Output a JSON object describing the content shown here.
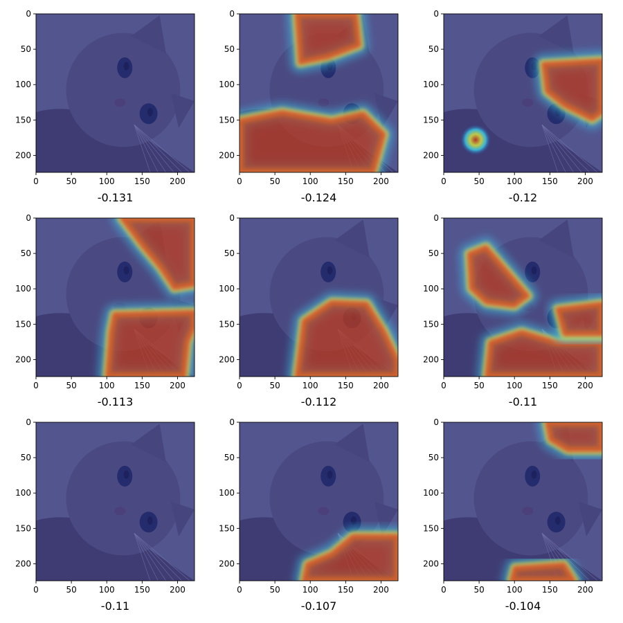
{
  "figure": {
    "description_free": true
  },
  "axis": {
    "x_ticks": [
      "0",
      "50",
      "100",
      "150",
      "200"
    ],
    "y_ticks": [
      "0",
      "50",
      "100",
      "150",
      "200"
    ],
    "xlim": [
      0,
      224
    ],
    "ylim": [
      224,
      0
    ]
  },
  "colors": {
    "cold": "#2a2f86",
    "hot": "#c03a1e",
    "colormap": "jet",
    "fur": "#7a6e7a",
    "eye": "#1d2a4a"
  },
  "chart_data": {
    "type": "heatmap",
    "grid": [
      3,
      3
    ],
    "panels": [
      {
        "score": "-0.131",
        "hotspots": []
      },
      {
        "score": "-0.124",
        "hotspots": [
          {
            "kind": "poly",
            "points": [
              [
                80,
                0
              ],
              [
                165,
                0
              ],
              [
                170,
                45
              ],
              [
                125,
                62
              ],
              [
                85,
                70
              ]
            ]
          },
          {
            "kind": "poly",
            "points": [
              [
                0,
                150
              ],
              [
                60,
                138
              ],
              [
                130,
                150
              ],
              [
                175,
                140
              ],
              [
                205,
                170
              ],
              [
                190,
                224
              ],
              [
                0,
                224
              ]
            ]
          }
        ]
      },
      {
        "score": "-0.12",
        "hotspots": [
          {
            "kind": "poly",
            "points": [
              [
                140,
                70
              ],
              [
                224,
                65
              ],
              [
                224,
                140
              ],
              [
                210,
                150
              ],
              [
                170,
                130
              ],
              [
                145,
                110
              ]
            ]
          },
          {
            "kind": "blob",
            "cx": 45,
            "cy": 178,
            "r": 14
          }
        ]
      },
      {
        "score": "-0.113",
        "hotspots": [
          {
            "kind": "poly",
            "points": [
              [
                120,
                0
              ],
              [
                224,
                0
              ],
              [
                224,
                95
              ],
              [
                195,
                100
              ],
              [
                175,
                70
              ],
              [
                150,
                40
              ]
            ]
          },
          {
            "kind": "poly",
            "points": [
              [
                110,
                135
              ],
              [
                224,
                132
              ],
              [
                224,
                155
              ],
              [
                215,
                175
              ],
              [
                210,
                224
              ],
              [
                100,
                224
              ],
              [
                105,
                160
              ]
            ]
          }
        ]
      },
      {
        "score": "-0.112",
        "hotspots": [
          {
            "kind": "poly",
            "points": [
              [
                90,
                145
              ],
              [
                130,
                118
              ],
              [
                180,
                120
              ],
              [
                205,
                160
              ],
              [
                224,
                200
              ],
              [
                224,
                224
              ],
              [
                80,
                224
              ]
            ]
          }
        ]
      },
      {
        "score": "-0.11",
        "hotspots": [
          {
            "kind": "poly",
            "points": [
              [
                35,
                50
              ],
              [
                60,
                40
              ],
              [
                90,
                75
              ],
              [
                120,
                110
              ],
              [
                100,
                125
              ],
              [
                60,
                120
              ],
              [
                38,
                100
              ]
            ]
          },
          {
            "kind": "poly",
            "points": [
              [
                65,
                175
              ],
              [
                110,
                160
              ],
              [
                160,
                175
              ],
              [
                224,
                175
              ],
              [
                224,
                224
              ],
              [
                60,
                224
              ]
            ]
          },
          {
            "kind": "poly",
            "points": [
              [
                160,
                128
              ],
              [
                224,
                120
              ],
              [
                224,
                165
              ],
              [
                170,
                165
              ]
            ]
          }
        ]
      },
      {
        "score": "-0.11",
        "hotspots": []
      },
      {
        "score": "-0.107",
        "hotspots": [
          {
            "kind": "poly",
            "points": [
              [
                95,
                200
              ],
              [
                130,
                185
              ],
              [
                160,
                160
              ],
              [
                224,
                160
              ],
              [
                224,
                224
              ],
              [
                90,
                224
              ]
            ]
          }
        ]
      },
      {
        "score": "-0.104",
        "hotspots": [
          {
            "kind": "poly",
            "points": [
              [
                145,
                0
              ],
              [
                224,
                0
              ],
              [
                224,
                40
              ],
              [
                175,
                40
              ],
              [
                150,
                25
              ]
            ]
          },
          {
            "kind": "poly",
            "points": [
              [
                100,
                205
              ],
              [
                170,
                200
              ],
              [
                185,
                224
              ],
              [
                95,
                224
              ]
            ]
          }
        ]
      }
    ]
  }
}
